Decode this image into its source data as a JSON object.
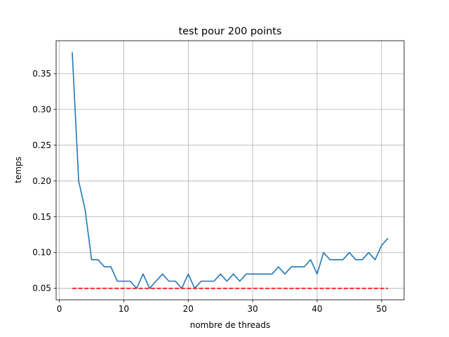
{
  "chart_data": {
    "type": "line",
    "title": "test pour 200 points",
    "xlabel": "nombre de threads",
    "ylabel": "temps",
    "xlim": [
      -0.5,
      53.5
    ],
    "ylim": [
      0.034,
      0.396
    ],
    "xticks": [
      0,
      10,
      20,
      30,
      40,
      50
    ],
    "xtick_labels": [
      "0",
      "10",
      "20",
      "30",
      "40",
      "50"
    ],
    "yticks": [
      0.05,
      0.1,
      0.15,
      0.2,
      0.25,
      0.3,
      0.35
    ],
    "ytick_labels": [
      "0.05",
      "0.10",
      "0.15",
      "0.20",
      "0.25",
      "0.30",
      "0.35"
    ],
    "grid": true,
    "series": [
      {
        "color": "#1f77b4",
        "style": "solid",
        "x": [
          2,
          3,
          4,
          5,
          6,
          7,
          8,
          9,
          10,
          11,
          12,
          13,
          14,
          15,
          16,
          17,
          18,
          19,
          20,
          21,
          22,
          23,
          24,
          25,
          26,
          27,
          28,
          29,
          30,
          31,
          32,
          33,
          34,
          35,
          36,
          37,
          38,
          39,
          40,
          41,
          42,
          43,
          44,
          45,
          46,
          47,
          48,
          49,
          50,
          51
        ],
        "y": [
          0.38,
          0.2,
          0.16,
          0.09,
          0.09,
          0.08,
          0.08,
          0.06,
          0.06,
          0.06,
          0.05,
          0.07,
          0.05,
          0.06,
          0.07,
          0.06,
          0.06,
          0.05,
          0.07,
          0.05,
          0.06,
          0.06,
          0.06,
          0.07,
          0.06,
          0.07,
          0.06,
          0.07,
          0.07,
          0.07,
          0.07,
          0.07,
          0.08,
          0.07,
          0.08,
          0.08,
          0.08,
          0.09,
          0.07,
          0.1,
          0.09,
          0.09,
          0.09,
          0.1,
          0.09,
          0.09,
          0.1,
          0.09,
          0.11,
          0.12
        ]
      },
      {
        "color": "#ff0000",
        "style": "dashed",
        "x": [
          2,
          51
        ],
        "y": [
          0.05,
          0.05
        ]
      }
    ]
  }
}
